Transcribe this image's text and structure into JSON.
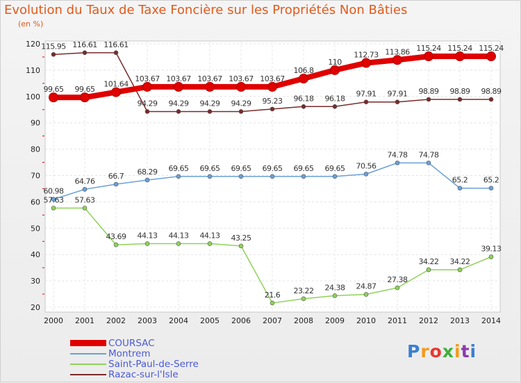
{
  "header": {
    "title": "Evolution du Taux de Taxe Foncière sur les Propriétés Non Bâties",
    "unit": "(en %)"
  },
  "brand": {
    "text": "Proxiti",
    "colors": [
      "#3a7fd0",
      "#f29a1e",
      "#e8372f",
      "#3fae3a",
      "#f29a1e",
      "#8c3ab0",
      "#3a7fd0"
    ]
  },
  "chart_data": {
    "type": "line",
    "title": "Evolution du Taux de Taxe Foncière sur les Propriétés Non Bâties",
    "ylabel": "(en %)",
    "xlabel": "",
    "ylim": [
      20,
      120
    ],
    "yticks": [
      20,
      30,
      40,
      50,
      60,
      70,
      80,
      90,
      100,
      110,
      120
    ],
    "categories": [
      "2000",
      "2001",
      "2002",
      "2003",
      "2004",
      "2005",
      "2006",
      "2007",
      "2008",
      "2009",
      "2010",
      "2011",
      "2012",
      "2013",
      "2014"
    ],
    "grid": true,
    "legend": "bottom-left",
    "series": [
      {
        "name": "Razac-sur-l'Isle",
        "color": "#7a2a2a",
        "values": [
          115.95,
          116.61,
          116.61,
          94.29,
          94.29,
          94.29,
          94.29,
          95.23,
          96.18,
          96.18,
          97.91,
          97.91,
          98.89,
          98.89,
          98.89
        ],
        "labels": [
          "115.95",
          "116.61",
          "116.61",
          "94.29",
          "94.29",
          "94.29",
          "94.29",
          "95.23",
          "96.18",
          "96.18",
          "97.91",
          "97.91",
          "98.89",
          "98.89",
          "98.89"
        ]
      },
      {
        "name": "Saint-Paul-de-Serre",
        "color": "#8fd25a",
        "values": [
          57.63,
          57.63,
          43.69,
          44.13,
          44.13,
          44.13,
          43.25,
          21.6,
          23.22,
          24.38,
          24.87,
          27.38,
          34.22,
          34.22,
          39.13
        ],
        "labels": [
          "57.63",
          "57.63",
          "43.69",
          "44.13",
          "44.13",
          "44.13",
          "43.25",
          "21.6",
          "23.22",
          "24.38",
          "24.87",
          "27.38",
          "34.22",
          "34.22",
          "39.13"
        ]
      },
      {
        "name": "Montrem",
        "color": "#6aa0d8",
        "values": [
          60.98,
          64.76,
          66.7,
          68.29,
          69.65,
          69.65,
          69.65,
          69.65,
          69.65,
          69.65,
          70.56,
          74.78,
          74.78,
          65.2,
          65.2
        ],
        "labels": [
          "60.98",
          "64.76",
          "66.7",
          "68.29",
          "69.65",
          "69.65",
          "69.65",
          "69.65",
          "69.65",
          "69.65",
          "70.56",
          "74.78",
          "74.78",
          "65.2",
          "65.2"
        ]
      },
      {
        "name": "COURSAC",
        "color": "#e00000",
        "values": [
          99.65,
          99.65,
          101.64,
          103.67,
          103.67,
          103.67,
          103.67,
          103.67,
          106.8,
          110,
          112.73,
          113.86,
          115.24,
          115.24,
          115.24
        ],
        "labels": [
          "99.65",
          "99.65",
          "101.64",
          "103.67",
          "103.67",
          "103.67",
          "103.67",
          "103.67",
          "106.8",
          "110",
          "112.73",
          "113.86",
          "115.24",
          "115.24",
          "115.24"
        ]
      }
    ]
  }
}
